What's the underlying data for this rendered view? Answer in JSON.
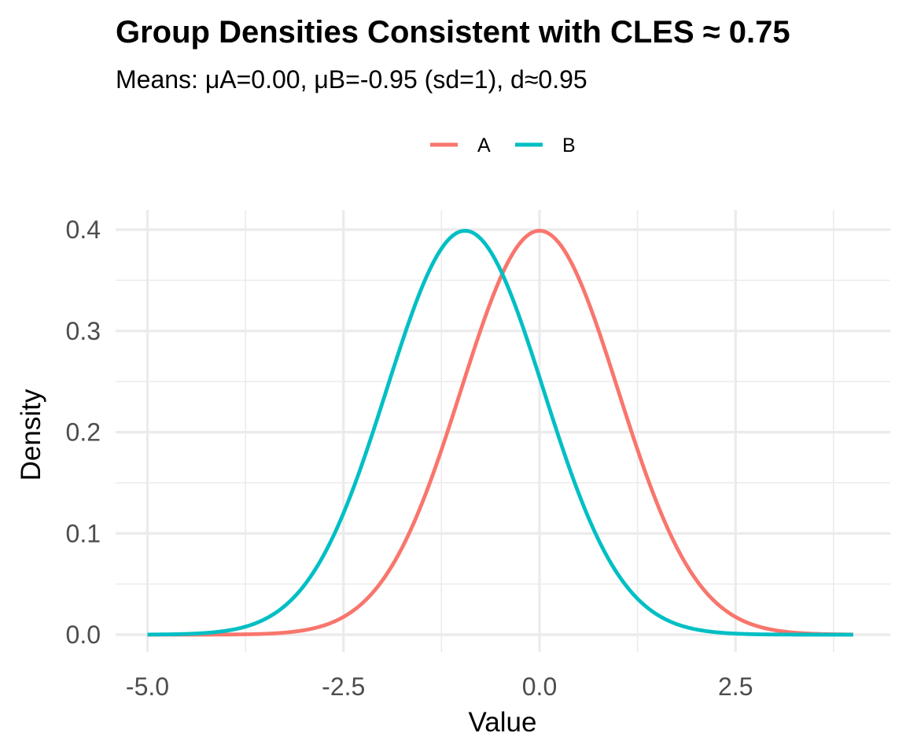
{
  "chart_data": {
    "type": "line",
    "title": "Group Densities Consistent with CLES ≈ 0.75",
    "subtitle": "Means: μA=0.00, μB=-0.95 (sd=1), d≈0.95",
    "xlabel": "Value",
    "ylabel": "Density",
    "xlim": [
      -5,
      4
    ],
    "ylim": [
      0,
      0.4
    ],
    "x_ticks": [
      -5.0,
      -2.5,
      0.0,
      2.5
    ],
    "x_tick_labels": [
      "-5.0",
      "-2.5",
      "0.0",
      "2.5"
    ],
    "y_ticks": [
      0.0,
      0.1,
      0.2,
      0.3,
      0.4
    ],
    "y_tick_labels": [
      "0.0",
      "0.1",
      "0.2",
      "0.3",
      "0.4"
    ],
    "grid": true,
    "legend": {
      "position": "top",
      "entries": [
        "A",
        "B"
      ]
    },
    "series": [
      {
        "name": "A",
        "color": "#F8766D",
        "x": [
          -5.0,
          -4.5,
          -4.0,
          -3.5,
          -3.0,
          -2.5,
          -2.0,
          -1.5,
          -1.0,
          -0.5,
          0.0,
          0.5,
          1.0,
          1.5,
          2.0,
          2.5,
          3.0,
          3.5,
          4.0
        ],
        "y": [
          0.0,
          0.0,
          0.0001,
          0.0009,
          0.0044,
          0.0175,
          0.054,
          0.1295,
          0.242,
          0.3521,
          0.3989,
          0.3521,
          0.242,
          0.1295,
          0.054,
          0.0175,
          0.0044,
          0.0009,
          0.0001
        ]
      },
      {
        "name": "B",
        "color": "#00BFC4",
        "x": [
          -5.0,
          -4.5,
          -4.0,
          -3.5,
          -3.0,
          -2.5,
          -2.0,
          -1.5,
          -1.0,
          -0.5,
          0.0,
          0.5,
          1.0,
          1.5,
          2.0,
          2.5,
          3.0,
          3.5,
          4.0
        ],
        "y": [
          0.0001,
          0.0007,
          0.0038,
          0.0154,
          0.0488,
          0.12,
          0.2299,
          0.3429,
          0.3984,
          0.3605,
          0.2541,
          0.1396,
          0.0596,
          0.0198,
          0.0051,
          0.001,
          0.0002,
          0.0,
          0.0
        ]
      }
    ]
  }
}
